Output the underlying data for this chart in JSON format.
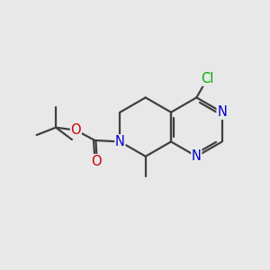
{
  "bg_color": "#e8e8e8",
  "bond_color": "#404040",
  "n_color": "#0000cc",
  "o_color": "#cc0000",
  "cl_color": "#00aa00",
  "line_width": 1.6,
  "font_size": 10.5,
  "xlim": [
    0,
    10
  ],
  "ylim": [
    1,
    9
  ],
  "figsize": [
    3.0,
    3.0
  ],
  "dpi": 100
}
